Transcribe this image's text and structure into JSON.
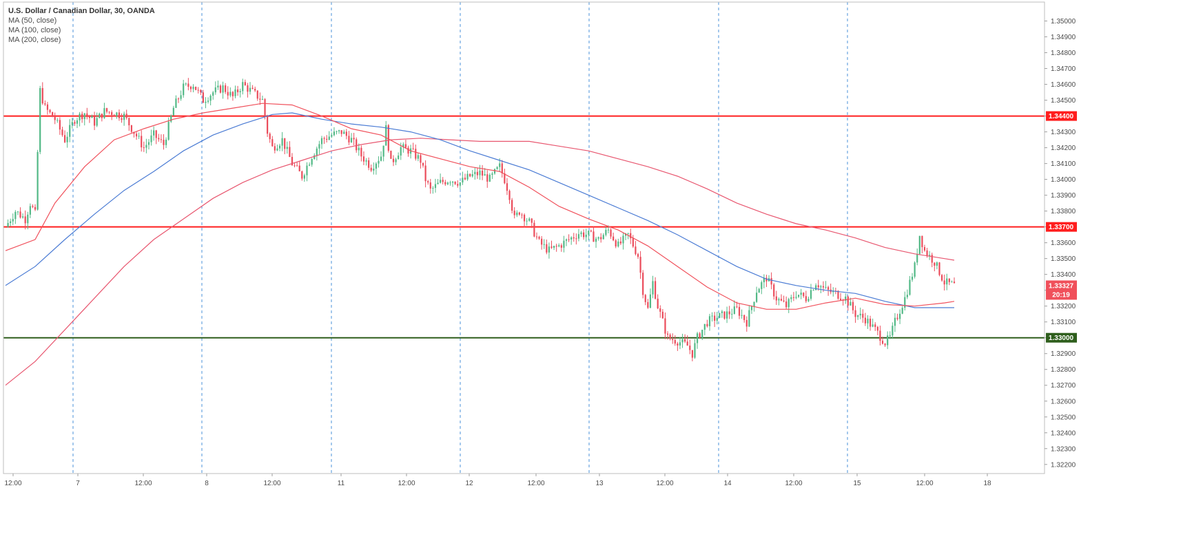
{
  "header": {
    "title": "U.S. Dollar / Canadian Dollar, 30, OANDA",
    "indicators": [
      "MA (50, close)",
      "MA (100, close)",
      "MA (200, close)"
    ]
  },
  "colors": {
    "bull": "#53b987",
    "bear": "#eb4d5c",
    "ma50": "#f0505b",
    "ma100": "#4a7bd4",
    "ma200": "#e8566f",
    "resistance": "#ff1e1e",
    "support": "#2e5e1c",
    "grid_dash": "#4a90d9",
    "current_tag": "#f0505b"
  },
  "chart_data": {
    "type": "line",
    "title": "U.S. Dollar / Canadian Dollar, 30, OANDA",
    "ylim": [
      1.3216,
      1.3505
    ],
    "y_ticks": [
      "1.35000",
      "1.34900",
      "1.34800",
      "1.34700",
      "1.34600",
      "1.34500",
      "1.34400",
      "1.34300",
      "1.34200",
      "1.34100",
      "1.34000",
      "1.33900",
      "1.33800",
      "1.33700",
      "1.33600",
      "1.33500",
      "1.33400",
      "1.33300",
      "1.33200",
      "1.33100",
      "1.33000",
      "1.32900",
      "1.32800",
      "1.32700",
      "1.32600",
      "1.32500",
      "1.32400",
      "1.32300",
      "1.32200"
    ],
    "x_ticks": [
      "12:00",
      "7",
      "12:00",
      "8",
      "12:00",
      "11",
      "12:00",
      "12",
      "12:00",
      "13",
      "12:00",
      "14",
      "12:00",
      "15",
      "12:00",
      "18"
    ],
    "day_separators": [
      "7",
      "8",
      "11",
      "12",
      "13",
      "14",
      "15"
    ],
    "horizontal_levels": [
      {
        "value": 1.344,
        "label": "1.34400",
        "kind": "resistance"
      },
      {
        "value": 1.337,
        "label": "1.33700",
        "kind": "resistance"
      },
      {
        "value": 1.33,
        "label": "1.33000",
        "kind": "support"
      }
    ],
    "current_price": {
      "value": 1.33327,
      "label": "1.33327",
      "countdown": "20:19"
    },
    "price_path": [
      [
        0,
        1.337
      ],
      [
        2,
        1.338
      ],
      [
        4,
        1.3375
      ],
      [
        5,
        1.3385
      ],
      [
        6,
        1.3378
      ],
      [
        7,
        1.3456
      ],
      [
        8,
        1.3445
      ],
      [
        10,
        1.3438
      ],
      [
        12,
        1.3425
      ],
      [
        14,
        1.3438
      ],
      [
        16,
        1.3442
      ],
      [
        18,
        1.3436
      ],
      [
        20,
        1.3443
      ],
      [
        22,
        1.3442
      ],
      [
        24,
        1.344
      ],
      [
        26,
        1.343
      ],
      [
        28,
        1.342
      ],
      [
        30,
        1.3428
      ],
      [
        32,
        1.3422
      ],
      [
        34,
        1.3445
      ],
      [
        36,
        1.3458
      ],
      [
        38,
        1.346
      ],
      [
        40,
        1.345
      ],
      [
        42,
        1.3455
      ],
      [
        44,
        1.3458
      ],
      [
        46,
        1.3452
      ],
      [
        48,
        1.346
      ],
      [
        50,
        1.3455
      ],
      [
        52,
        1.345
      ],
      [
        53,
        1.343
      ],
      [
        54,
        1.342
      ],
      [
        56,
        1.3425
      ],
      [
        58,
        1.341
      ],
      [
        60,
        1.3402
      ],
      [
        62,
        1.3415
      ],
      [
        64,
        1.3425
      ],
      [
        66,
        1.3428
      ],
      [
        68,
        1.343
      ],
      [
        70,
        1.3425
      ],
      [
        72,
        1.3415
      ],
      [
        74,
        1.3408
      ],
      [
        76,
        1.3415
      ],
      [
        77,
        1.3432
      ],
      [
        78,
        1.341
      ],
      [
        80,
        1.342
      ],
      [
        82,
        1.3418
      ],
      [
        84,
        1.3412
      ],
      [
        85,
        1.34
      ],
      [
        86,
        1.3393
      ],
      [
        88,
        1.3398
      ],
      [
        90,
        1.34
      ],
      [
        92,
        1.3398
      ],
      [
        94,
        1.3402
      ],
      [
        96,
        1.3404
      ],
      [
        98,
        1.34
      ],
      [
        100,
        1.3408
      ],
      [
        101,
        1.34
      ],
      [
        102,
        1.339
      ],
      [
        103,
        1.3375
      ],
      [
        104,
        1.338
      ],
      [
        106,
        1.3373
      ],
      [
        108,
        1.336
      ],
      [
        110,
        1.3355
      ],
      [
        112,
        1.3358
      ],
      [
        114,
        1.3362
      ],
      [
        116,
        1.3366
      ],
      [
        118,
        1.3365
      ],
      [
        120,
        1.3362
      ],
      [
        122,
        1.3368
      ],
      [
        124,
        1.3358
      ],
      [
        126,
        1.3365
      ],
      [
        128,
        1.3352
      ],
      [
        129,
        1.333
      ],
      [
        130,
        1.3318
      ],
      [
        131,
        1.3335
      ],
      [
        132,
        1.332
      ],
      [
        134,
        1.33
      ],
      [
        136,
        1.3298
      ],
      [
        138,
        1.3295
      ],
      [
        139,
        1.329
      ],
      [
        140,
        1.33
      ],
      [
        142,
        1.331
      ],
      [
        144,
        1.3313
      ],
      [
        146,
        1.3315
      ],
      [
        148,
        1.3318
      ],
      [
        150,
        1.331
      ],
      [
        152,
        1.333
      ],
      [
        154,
        1.3338
      ],
      [
        156,
        1.3325
      ],
      [
        158,
        1.332
      ],
      [
        160,
        1.3328
      ],
      [
        162,
        1.3325
      ],
      [
        164,
        1.3335
      ],
      [
        166,
        1.333
      ],
      [
        168,
        1.3328
      ],
      [
        170,
        1.3325
      ],
      [
        172,
        1.3315
      ],
      [
        174,
        1.3312
      ],
      [
        176,
        1.3305
      ],
      [
        178,
        1.3297
      ],
      [
        179,
        1.33
      ],
      [
        180,
        1.331
      ],
      [
        182,
        1.3325
      ],
      [
        184,
        1.3345
      ],
      [
        185,
        1.3365
      ],
      [
        186,
        1.3355
      ],
      [
        188,
        1.3348
      ],
      [
        190,
        1.3335
      ],
      [
        192,
        1.3333
      ]
    ],
    "ma50": [
      [
        0,
        1.3355
      ],
      [
        6,
        1.3362
      ],
      [
        10,
        1.3385
      ],
      [
        16,
        1.3408
      ],
      [
        22,
        1.3425
      ],
      [
        28,
        1.3432
      ],
      [
        34,
        1.3438
      ],
      [
        40,
        1.3442
      ],
      [
        46,
        1.3445
      ],
      [
        52,
        1.3448
      ],
      [
        58,
        1.3447
      ],
      [
        64,
        1.344
      ],
      [
        70,
        1.3432
      ],
      [
        76,
        1.3428
      ],
      [
        82,
        1.3418
      ],
      [
        88,
        1.3413
      ],
      [
        94,
        1.3408
      ],
      [
        100,
        1.3405
      ],
      [
        106,
        1.3395
      ],
      [
        112,
        1.3383
      ],
      [
        118,
        1.3375
      ],
      [
        124,
        1.3368
      ],
      [
        130,
        1.3358
      ],
      [
        136,
        1.3345
      ],
      [
        142,
        1.3332
      ],
      [
        148,
        1.3322
      ],
      [
        154,
        1.3318
      ],
      [
        160,
        1.3318
      ],
      [
        166,
        1.3322
      ],
      [
        172,
        1.3325
      ],
      [
        178,
        1.3321
      ],
      [
        184,
        1.332
      ],
      [
        190,
        1.3322
      ],
      [
        192,
        1.3323
      ]
    ],
    "ma100": [
      [
        0,
        1.3333
      ],
      [
        6,
        1.3345
      ],
      [
        12,
        1.3362
      ],
      [
        18,
        1.3378
      ],
      [
        24,
        1.3393
      ],
      [
        30,
        1.3405
      ],
      [
        36,
        1.3418
      ],
      [
        42,
        1.3428
      ],
      [
        48,
        1.3435
      ],
      [
        54,
        1.3441
      ],
      [
        58,
        1.3442
      ],
      [
        64,
        1.3438
      ],
      [
        70,
        1.3435
      ],
      [
        76,
        1.3433
      ],
      [
        82,
        1.343
      ],
      [
        88,
        1.3425
      ],
      [
        94,
        1.3418
      ],
      [
        100,
        1.3412
      ],
      [
        106,
        1.3406
      ],
      [
        112,
        1.3398
      ],
      [
        118,
        1.339
      ],
      [
        124,
        1.3382
      ],
      [
        130,
        1.3374
      ],
      [
        136,
        1.3365
      ],
      [
        142,
        1.3355
      ],
      [
        148,
        1.3345
      ],
      [
        154,
        1.3337
      ],
      [
        160,
        1.3333
      ],
      [
        166,
        1.333
      ],
      [
        172,
        1.3328
      ],
      [
        178,
        1.3323
      ],
      [
        184,
        1.3319
      ],
      [
        190,
        1.3319
      ],
      [
        192,
        1.3319
      ]
    ],
    "ma200": [
      [
        0,
        1.327
      ],
      [
        6,
        1.3285
      ],
      [
        12,
        1.3305
      ],
      [
        18,
        1.3325
      ],
      [
        24,
        1.3345
      ],
      [
        30,
        1.3362
      ],
      [
        36,
        1.3375
      ],
      [
        42,
        1.3388
      ],
      [
        48,
        1.3398
      ],
      [
        54,
        1.3406
      ],
      [
        60,
        1.3412
      ],
      [
        66,
        1.3418
      ],
      [
        72,
        1.3422
      ],
      [
        78,
        1.3425
      ],
      [
        84,
        1.3426
      ],
      [
        90,
        1.3425
      ],
      [
        96,
        1.3424
      ],
      [
        100,
        1.3424
      ],
      [
        106,
        1.3424
      ],
      [
        112,
        1.3421
      ],
      [
        118,
        1.3418
      ],
      [
        124,
        1.3413
      ],
      [
        130,
        1.3408
      ],
      [
        136,
        1.3402
      ],
      [
        142,
        1.3394
      ],
      [
        148,
        1.3385
      ],
      [
        154,
        1.3378
      ],
      [
        160,
        1.3372
      ],
      [
        166,
        1.3368
      ],
      [
        172,
        1.3363
      ],
      [
        178,
        1.3357
      ],
      [
        184,
        1.3353
      ],
      [
        190,
        1.335
      ],
      [
        192,
        1.3349
      ]
    ]
  }
}
